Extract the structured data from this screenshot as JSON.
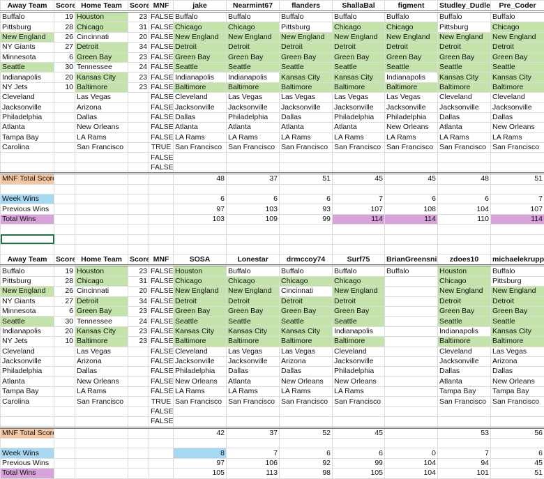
{
  "headers": {
    "away": "Away Team",
    "score": "Score",
    "home": "Home Team",
    "score2": "Score",
    "mnf": "MNF"
  },
  "row_labels": {
    "mnf_total": "MNF Total Score",
    "week_wins": "Week Wins",
    "previous_wins": "Previous Wins",
    "total_wins": "Total Wins"
  },
  "colors": {
    "winner_green": "#c3e3aa",
    "mnf_label": "#f5c6a2",
    "week_wins": "#a4d8f3",
    "total_wins": "#d8a2da",
    "selection": "#217346"
  },
  "games": {
    "away": [
      "Buffalo",
      "Pittsburg",
      "New England",
      "NY Giants",
      "Minnesota",
      "Seattle",
      "Indianapolis",
      "NY Jets",
      "Cleveland",
      "Jacksonville",
      "Philadelphia",
      "Atlanta",
      "Tampa Bay",
      "Carolina",
      "",
      ""
    ],
    "away_score": [
      "19",
      "28",
      "26",
      "27",
      "6",
      "30",
      "20",
      "10",
      "",
      "",
      "",
      "",
      "",
      "",
      "",
      ""
    ],
    "home": [
      "Houston",
      "Chicago",
      "Cincinnati",
      "Detroit",
      "Green Bay",
      "Tennessee",
      "Kansas City",
      "Baltimore",
      "Las Vegas",
      "Arizona",
      "Dallas",
      "New Orleans",
      "LA Rams",
      "San Francisco",
      "",
      ""
    ],
    "home_score": [
      "23",
      "31",
      "20",
      "34",
      "23",
      "24",
      "23",
      "23",
      "",
      "",
      "",
      "",
      "",
      "",
      "",
      ""
    ],
    "mnf": [
      "FALSE",
      "FALSE",
      "FALSE",
      "FALSE",
      "FALSE",
      "FALSE",
      "FALSE",
      "FALSE",
      "FALSE",
      "FALSE",
      "FALSE",
      "FALSE",
      "FALSE",
      "TRUE",
      "FALSE",
      "FALSE"
    ],
    "winners": [
      "Houston",
      "Chicago",
      "New England",
      "Detroit",
      "Green Bay",
      "Seattle",
      "Kansas City",
      "Baltimore"
    ]
  },
  "sections": [
    {
      "players": [
        {
          "name": "jake",
          "picks": [
            "Buffalo",
            "Chicago",
            "New England",
            "Detroit",
            "Green Bay",
            "Seattle",
            "Indianapolis",
            "Baltimore",
            "Cleveland",
            "Jacksonville",
            "Dallas",
            "Atlanta",
            "LA Rams",
            "San Francisco"
          ],
          "mnf_total": "48",
          "week_wins": "6",
          "previous_wins": "97",
          "total_wins": "103",
          "week_highlight": false,
          "total_highlight": false
        },
        {
          "name": "Nearmint67",
          "picks": [
            "Buffalo",
            "Chicago",
            "New England",
            "Detroit",
            "Green Bay",
            "Seattle",
            "Indianapolis",
            "Baltimore",
            "Las Vegas",
            "Jacksonville",
            "Philadelphia",
            "Atlanta",
            "LA Rams",
            "San Francisco"
          ],
          "mnf_total": "37",
          "week_wins": "6",
          "previous_wins": "103",
          "total_wins": "109",
          "week_highlight": false,
          "total_highlight": false
        },
        {
          "name": "flanders",
          "picks": [
            "Buffalo",
            "Pittsburg",
            "New England",
            "Detroit",
            "Green Bay",
            "Seattle",
            "Kansas City",
            "Baltimore",
            "Las Vegas",
            "Jacksonville",
            "Dallas",
            "Atlanta",
            "LA Rams",
            "San Francisco"
          ],
          "mnf_total": "51",
          "week_wins": "6",
          "previous_wins": "93",
          "total_wins": "99",
          "week_highlight": false,
          "total_highlight": false
        },
        {
          "name": "ShallaBal",
          "picks": [
            "Buffalo",
            "Chicago",
            "New England",
            "Detroit",
            "Green Bay",
            "Seattle",
            "Kansas City",
            "Baltimore",
            "Las Vegas",
            "Jacksonville",
            "Philadelphia",
            "Atlanta",
            "LA Rams",
            "San Francisco"
          ],
          "mnf_total": "45",
          "week_wins": "7",
          "previous_wins": "107",
          "total_wins": "114",
          "week_highlight": false,
          "total_highlight": true
        },
        {
          "name": "figment",
          "picks": [
            "Buffalo",
            "Chicago",
            "New England",
            "Detroit",
            "Green Bay",
            "Seattle",
            "Indianapolis",
            "Baltimore",
            "Las Vegas",
            "Jacksonville",
            "Philadelphia",
            "New Orleans",
            "LA Rams",
            "San Francisco"
          ],
          "mnf_total": "45",
          "week_wins": "6",
          "previous_wins": "108",
          "total_wins": "114",
          "week_highlight": false,
          "total_highlight": true
        },
        {
          "name": "Studley_Dudley",
          "picks": [
            "Buffalo",
            "Pittsburg",
            "New England",
            "Detroit",
            "Green Bay",
            "Seattle",
            "Kansas City",
            "Baltimore",
            "Cleveland",
            "Jacksonville",
            "Dallas",
            "Atlanta",
            "LA Rams",
            "San Francisco"
          ],
          "mnf_total": "48",
          "week_wins": "6",
          "previous_wins": "104",
          "total_wins": "110",
          "week_highlight": false,
          "total_highlight": false
        },
        {
          "name": "Pre_Coder",
          "picks": [
            "Buffalo",
            "Chicago",
            "New England",
            "Detroit",
            "Green Bay",
            "Seattle",
            "Kansas City",
            "Baltimore",
            "Cleveland",
            "Jacksonville",
            "Dallas",
            "New Orleans",
            "LA Rams",
            "San Francisco"
          ],
          "mnf_total": "51",
          "week_wins": "7",
          "previous_wins": "107",
          "total_wins": "114",
          "week_highlight": false,
          "total_highlight": true
        }
      ]
    },
    {
      "players": [
        {
          "name": "SOSA",
          "picks": [
            "Houston",
            "Chicago",
            "New England",
            "Detroit",
            "Green Bay",
            "Seattle",
            "Kansas City",
            "Baltimore",
            "Cleveland",
            "Jacksonville",
            "Philadelphia",
            "New Orleans",
            "LA Rams",
            "San Francisco"
          ],
          "mnf_total": "42",
          "week_wins": "8",
          "previous_wins": "97",
          "total_wins": "105",
          "week_highlight": true,
          "total_highlight": false
        },
        {
          "name": "Lonestar",
          "picks": [
            "Buffalo",
            "Chicago",
            "New England",
            "Detroit",
            "Green Bay",
            "Seattle",
            "Kansas City",
            "Baltimore",
            "Las Vegas",
            "Jacksonville",
            "Dallas",
            "Atlanta",
            "LA Rams",
            "San Francisco"
          ],
          "mnf_total": "37",
          "week_wins": "7",
          "previous_wins": "106",
          "total_wins": "113",
          "week_highlight": false,
          "total_highlight": false
        },
        {
          "name": "drmccoy74",
          "picks": [
            "Buffalo",
            "Chicago",
            "Cincinnati",
            "Detroit",
            "Green Bay",
            "Seattle",
            "Kansas City",
            "Baltimore",
            "Las Vegas",
            "Arizona",
            "Dallas",
            "New Orleans",
            "LA Rams",
            "San Francisco"
          ],
          "mnf_total": "52",
          "week_wins": "6",
          "previous_wins": "92",
          "total_wins": "98",
          "week_highlight": false,
          "total_highlight": false
        },
        {
          "name": "Surf75",
          "picks": [
            "Buffalo",
            "Chicago",
            "New England",
            "Detroit",
            "Green Bay",
            "Seattle",
            "Indianapolis",
            "Baltimore",
            "Cleveland",
            "Jacksonville",
            "Philadelphia",
            "New Orleans",
            "LA Rams",
            "San Francisco"
          ],
          "mnf_total": "45",
          "week_wins": "6",
          "previous_wins": "99",
          "total_wins": "105",
          "week_highlight": false,
          "total_highlight": false
        },
        {
          "name": "BrianGreensnips",
          "picks": [
            "Buffalo"
          ],
          "mnf_total": "",
          "week_wins": "0",
          "previous_wins": "104",
          "total_wins": "104",
          "week_highlight": false,
          "total_highlight": false
        },
        {
          "name": "zdoes10",
          "picks": [
            "Houston",
            "Chicago",
            "New England",
            "Detroit",
            "Green Bay",
            "Seattle",
            "Indianapolis",
            "Baltimore",
            "Cleveland",
            "Jacksonville",
            "Dallas",
            "Atlanta",
            "Tampa Bay",
            "San Francisco"
          ],
          "mnf_total": "53",
          "week_wins": "7",
          "previous_wins": "94",
          "total_wins": "101",
          "week_highlight": false,
          "total_highlight": false
        },
        {
          "name": "michaelekrupp",
          "picks": [
            "Buffalo",
            "Pittsburg",
            "New England",
            "Detroit",
            "Green Bay",
            "Seattle",
            "Kansas City",
            "Baltimore",
            "Las Vegas",
            "Arizona",
            "Dallas",
            "New Orleans",
            "Tampa Bay",
            "San Francisco"
          ],
          "mnf_total": "56",
          "week_wins": "6",
          "previous_wins": "45",
          "total_wins": "51",
          "week_highlight": false,
          "total_highlight": false
        }
      ]
    }
  ]
}
